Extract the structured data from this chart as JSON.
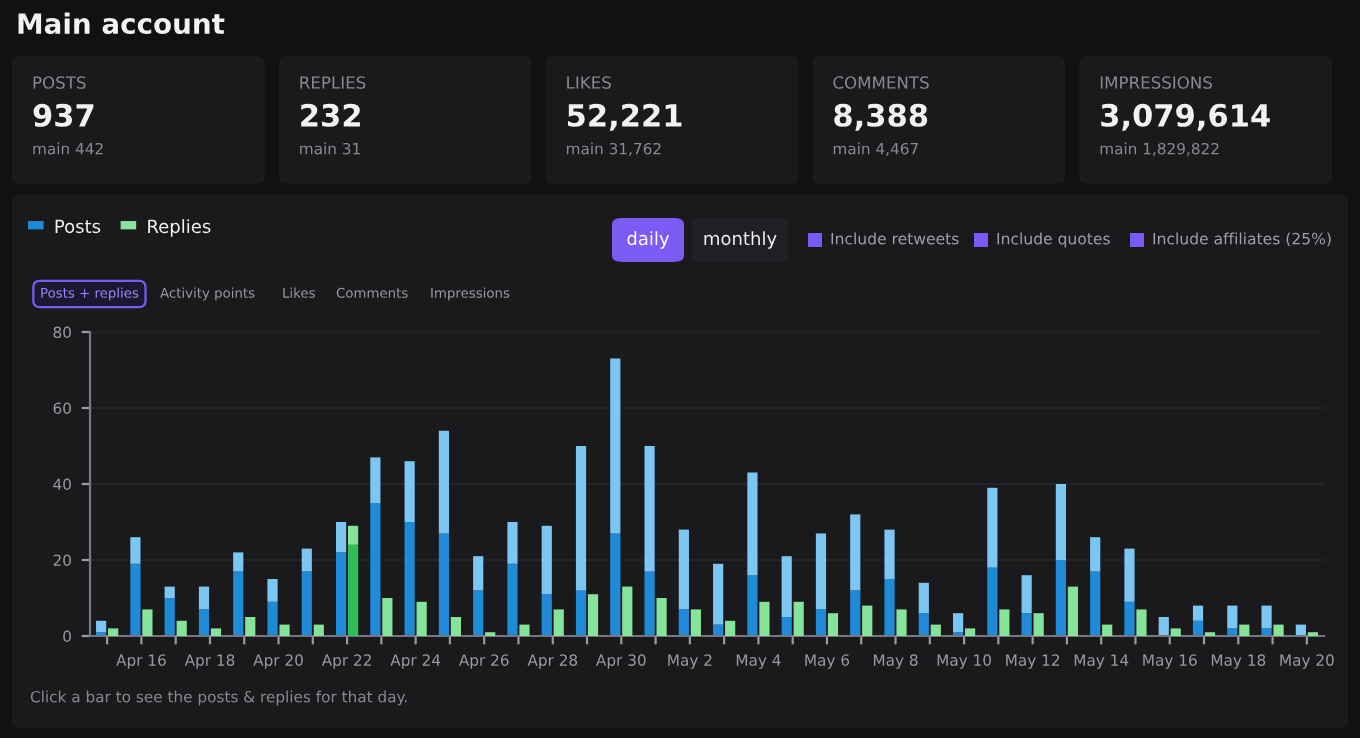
{
  "chart_data": [
    {
      "type": "other",
      "title": "Main account",
      "annotations": [
        "POSTS",
        "937",
        "main 442",
        "REPLIES",
        "232",
        "main 31",
        "LIKES",
        "52,221",
        "main 31,762",
        "COMMENTS",
        "8,388",
        "main 4,467",
        "IMPRESSIONS",
        "3,079,614",
        "main 1,829,822"
      ]
    },
    {
      "type": "bar",
      "stacked": true,
      "legend": "top left",
      "grid": "y",
      "categories": [
        null,
        "Apr 16",
        null,
        "Apr 18",
        null,
        "Apr 20",
        null,
        "Apr 22",
        null,
        "Apr 24",
        null,
        "Apr 26",
        null,
        "Apr 28",
        null,
        "Apr 30",
        null,
        "May 2",
        null,
        "May 4",
        null,
        "May 6",
        null,
        "May 8",
        null,
        "May 10",
        null,
        "May 12",
        null,
        "May 14",
        null,
        "May 16",
        null,
        "May 18",
        null,
        "May 20"
      ],
      "ylim": [
        0,
        80
      ],
      "yticks": [
        0,
        20,
        40,
        60,
        80
      ],
      "series": [
        {
          "name": "Posts",
          "color": "#1f8ad8",
          "values": [
            1,
            19,
            10,
            7,
            17,
            9,
            17,
            22,
            35,
            30,
            27,
            12,
            19,
            11,
            12,
            27,
            17,
            7,
            3,
            16,
            5,
            7,
            12,
            15,
            6,
            1,
            18,
            6,
            20,
            17,
            9,
            0,
            4,
            2,
            2,
            0
          ]
        },
        {
          "color": "#7cc6f2",
          "values": [
            3,
            7,
            3,
            6,
            5,
            6,
            6,
            8,
            12,
            16,
            27,
            9,
            11,
            18,
            38,
            46,
            33,
            21,
            16,
            27,
            16,
            20,
            20,
            13,
            8,
            5,
            21,
            10,
            20,
            9,
            14,
            5,
            4,
            6,
            6,
            3
          ]
        }
      ],
      "annotations": [
        "daily",
        "monthly",
        "Include retweets",
        "Include quotes",
        "Include affiliates (25%)",
        "Posts + replies",
        "Activity points",
        "Likes",
        "Comments",
        "Impressions",
        "Click a bar to see the posts & replies for that day."
      ]
    },
    {
      "type": "bar",
      "stacked": true,
      "legend": "top left",
      "tick_labels": false,
      "categories": [
        null,
        null,
        null,
        null,
        null,
        null,
        null,
        null,
        null,
        null,
        null,
        null,
        null,
        null,
        null,
        null,
        null,
        null,
        null,
        null,
        null,
        null,
        null,
        null,
        null,
        null,
        null,
        null,
        null,
        null,
        null,
        null,
        null,
        null,
        null,
        null
      ],
      "ylim": [
        0,
        80
      ],
      "series": [
        {
          "color": "#2fbf5a",
          "values": [
            0,
            0,
            0,
            0,
            0,
            0,
            0,
            24,
            0,
            0,
            0,
            0,
            0,
            0,
            0,
            0,
            0,
            0,
            0,
            0,
            0,
            0,
            0,
            0,
            0,
            0,
            0,
            0,
            0,
            0,
            0,
            0,
            0,
            0,
            0,
            0
          ]
        },
        {
          "name": "Replies",
          "color": "#86e39a",
          "values": [
            2,
            7,
            4,
            2,
            5,
            3,
            3,
            5,
            10,
            9,
            5,
            1,
            3,
            7,
            11,
            13,
            10,
            7,
            4,
            9,
            9,
            6,
            8,
            7,
            3,
            2,
            7,
            6,
            13,
            3,
            7,
            2,
            1,
            3,
            3,
            1
          ]
        }
      ]
    }
  ]
}
